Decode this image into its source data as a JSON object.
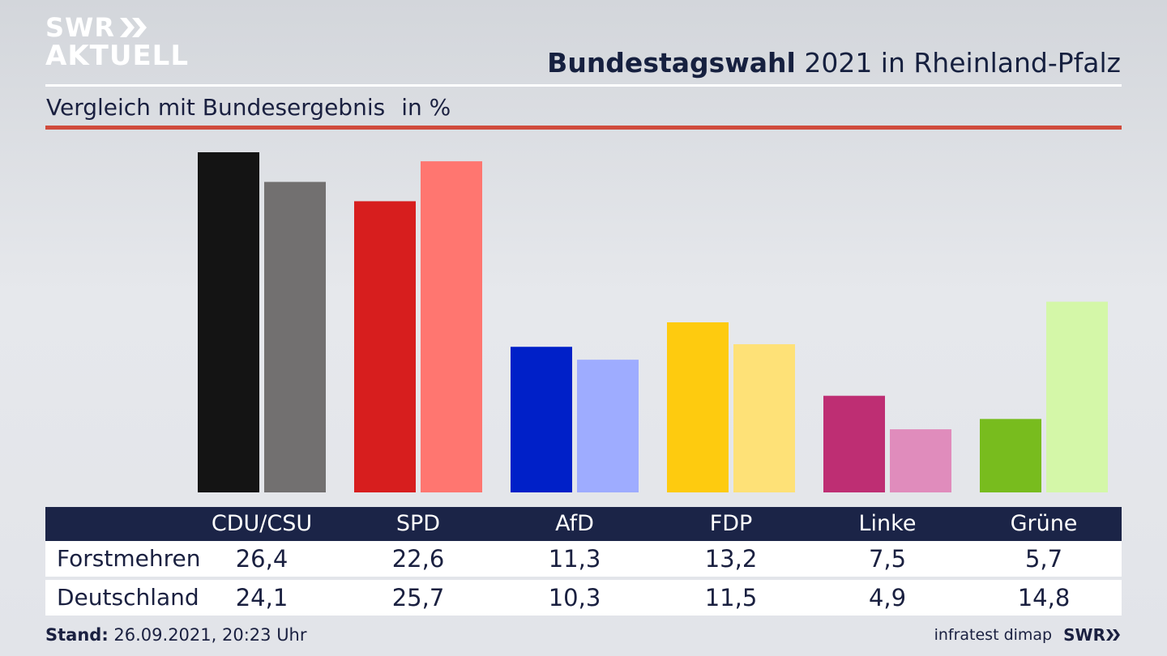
{
  "logo": {
    "top": "SWR",
    "bottom": "AKTUELL"
  },
  "header": {
    "title_bold": "Bundestagswahl",
    "title_rest": "2021 in Rheinland-Pfalz",
    "subtitle": "Vergleich mit Bundesergebnis",
    "unit": "in %"
  },
  "chart_data": {
    "type": "bar",
    "categories": [
      "CDU/CSU",
      "SPD",
      "AfD",
      "FDP",
      "Linke",
      "Grüne"
    ],
    "series": [
      {
        "name": "Forstmehren",
        "values": [
          26.4,
          22.6,
          11.3,
          13.2,
          7.5,
          5.7
        ],
        "colors": [
          "#141414",
          "#d71e1e",
          "#0020c8",
          "#fecb0f",
          "#be2e73",
          "#78bc1e"
        ]
      },
      {
        "name": "Deutschland",
        "values": [
          24.1,
          25.7,
          10.3,
          11.5,
          4.9,
          14.8
        ],
        "colors": [
          "#727070",
          "#ff7670",
          "#9eacff",
          "#fee177",
          "#e08cbc",
          "#d4f7a8"
        ]
      }
    ],
    "ylim": [
      0,
      26.4
    ],
    "grid": false
  },
  "table": {
    "columns": [
      "CDU/CSU",
      "SPD",
      "AfD",
      "FDP",
      "Linke",
      "Grüne"
    ],
    "rows": [
      {
        "label": "Forstmehren",
        "values": [
          "26,4",
          "22,6",
          "11,3",
          "13,2",
          "7,5",
          "5,7"
        ]
      },
      {
        "label": "Deutschland",
        "values": [
          "24,1",
          "25,7",
          "10,3",
          "11,5",
          "4,9",
          "14,8"
        ]
      }
    ]
  },
  "footer": {
    "stand_label": "Stand:",
    "stand_value": "26.09.2021, 20:23 Uhr",
    "source": "infratest dimap",
    "brand": "SWR"
  }
}
